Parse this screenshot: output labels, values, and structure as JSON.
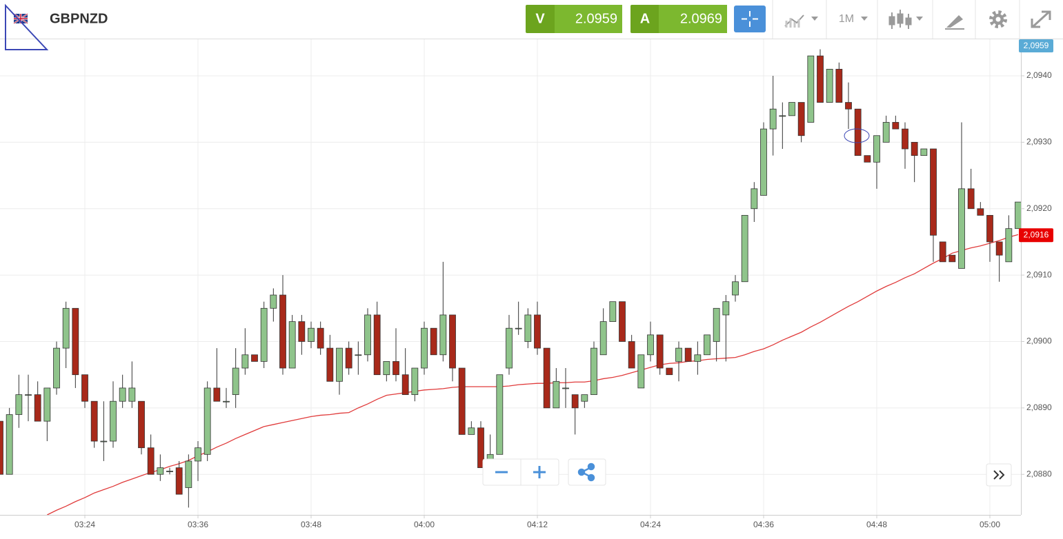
{
  "header": {
    "symbol": "GBPNZD",
    "sell_label": "V",
    "sell_price": "2.0959",
    "buy_label": "A",
    "buy_price": "2.0969",
    "timeframe": "1M"
  },
  "chart_data": {
    "type": "candlestick",
    "categories": [
      null,
      null,
      null,
      null,
      null,
      null,
      null,
      null,
      null,
      "03:24",
      null,
      null,
      null,
      null,
      null,
      null,
      null,
      null,
      null,
      null,
      null,
      "03:36",
      null,
      null,
      null,
      null,
      null,
      null,
      null,
      null,
      null,
      null,
      null,
      "03:48",
      null,
      null,
      null,
      null,
      null,
      null,
      null,
      null,
      null,
      null,
      null,
      "04:00",
      null,
      null,
      null,
      null,
      null,
      null,
      null,
      null,
      null,
      null,
      null,
      "04:12",
      null,
      null,
      null,
      null,
      null,
      null,
      null,
      null,
      null,
      null,
      null,
      "04:24",
      null,
      null,
      null,
      null,
      null,
      null,
      null,
      null,
      null,
      null,
      null,
      "04:36",
      null,
      null,
      null,
      null,
      null,
      null,
      null,
      null,
      null,
      null,
      null,
      "04:48",
      null,
      null,
      null,
      null,
      null,
      null,
      null,
      null,
      null,
      null,
      null,
      "05:00",
      null,
      null,
      null
    ],
    "open": [
      2.0888,
      2.088,
      2.0889,
      2.0892,
      2.0892,
      2.0888,
      2.0893,
      2.0899,
      2.0905,
      2.0895,
      2.0891,
      2.0885,
      2.0885,
      2.0891,
      2.0891,
      2.0891,
      2.0884,
      2.088,
      2.08805,
      2.0881,
      2.0878,
      2.0882,
      2.0883,
      2.0893,
      2.0891,
      2.0892,
      2.0896,
      2.0898,
      2.0897,
      2.0905,
      2.0907,
      2.0896,
      2.0903,
      2.09,
      2.0902,
      2.0899,
      2.0894,
      2.0899,
      2.0898,
      2.0898,
      2.0904,
      2.0895,
      2.0897,
      2.0895,
      2.0892,
      2.0896,
      2.0902,
      2.0898,
      2.0904,
      2.0896,
      2.0886,
      2.0887,
      2.0881,
      2.0883,
      2.0896,
      2.0902,
      2.09,
      2.0904,
      2.0899,
      2.089,
      2.0893,
      2.0892,
      2.0891,
      2.0892,
      2.0898,
      2.0903,
      2.0906,
      2.09,
      2.0893,
      2.0898,
      2.0901,
      2.0896,
      2.0897,
      2.0899,
      2.0897,
      2.0898,
      2.09,
      2.0904,
      2.0907,
      2.0909,
      2.092,
      2.0922,
      2.0932,
      2.0934,
      2.0934,
      2.0936,
      2.0933,
      2.0943,
      2.0936,
      2.0941,
      2.0936,
      2.0935,
      2.0928,
      2.0927,
      2.093,
      2.0933,
      2.0932,
      2.093,
      2.0928,
      2.0929,
      2.0915,
      2.0913,
      2.0911,
      2.0923,
      2.092,
      2.0919,
      2.0915,
      2.0912,
      2.0917
    ],
    "high": [
      2.0888,
      2.089,
      2.0895,
      2.0895,
      2.0894,
      2.0893,
      2.09,
      2.0906,
      2.0905,
      2.0895,
      2.0891,
      2.0891,
      2.0894,
      2.0895,
      2.0897,
      2.0891,
      2.0886,
      2.0883,
      2.0881,
      2.0882,
      2.0883,
      2.0885,
      2.0894,
      2.0899,
      2.0893,
      2.0899,
      2.0902,
      2.0898,
      2.0906,
      2.0908,
      2.091,
      2.0904,
      2.0904,
      2.0903,
      2.0903,
      2.0901,
      2.0899,
      2.09,
      2.09,
      2.0905,
      2.0906,
      2.0897,
      2.0902,
      2.0899,
      2.0896,
      2.0903,
      2.0902,
      2.0912,
      2.0904,
      2.0896,
      2.0888,
      2.0888,
      2.0886,
      2.0895,
      2.0904,
      2.0906,
      2.0905,
      2.0906,
      2.0899,
      2.0896,
      2.0896,
      2.0892,
      2.0892,
      2.09,
      2.0905,
      2.0906,
      2.0906,
      2.0901,
      2.0898,
      2.0903,
      2.0901,
      2.0896,
      2.09,
      2.0899,
      2.09,
      2.0901,
      2.0905,
      2.0907,
      2.091,
      2.0919,
      2.0924,
      2.0933,
      2.094,
      2.0936,
      2.0936,
      2.0936,
      2.0943,
      2.0944,
      2.0941,
      2.0942,
      2.0939,
      2.0935,
      2.0928,
      2.0931,
      2.0934,
      2.0934,
      2.0933,
      2.093,
      2.0929,
      2.0929,
      2.0915,
      2.0913,
      2.0933,
      2.0926,
      2.0921,
      2.0919,
      2.0915,
      2.0919,
      2.0921
    ],
    "low": [
      2.088,
      2.088,
      2.0887,
      2.0888,
      2.0888,
      2.0885,
      2.0892,
      2.0896,
      2.0893,
      2.089,
      2.0884,
      2.0882,
      2.0884,
      2.089,
      2.089,
      2.0883,
      2.088,
      2.0879,
      2.088,
      2.0877,
      2.0875,
      2.0879,
      2.0882,
      2.0891,
      2.089,
      2.089,
      2.0895,
      2.0897,
      2.0896,
      2.0903,
      2.0895,
      2.0896,
      2.0898,
      2.0899,
      2.0898,
      2.0894,
      2.0892,
      2.0895,
      2.0895,
      2.0897,
      2.0895,
      2.0894,
      2.0894,
      2.0892,
      2.0891,
      2.0895,
      2.0898,
      2.0897,
      2.0894,
      2.0886,
      2.0886,
      2.0881,
      2.088,
      2.0883,
      2.0895,
      2.0901,
      2.0899,
      2.0898,
      2.089,
      2.089,
      2.089,
      2.0886,
      2.089,
      2.0892,
      2.0898,
      2.0903,
      2.09,
      2.0896,
      2.0893,
      2.0897,
      2.0895,
      2.0895,
      2.0894,
      2.0897,
      2.0895,
      2.0898,
      2.0897,
      2.0897,
      2.0906,
      2.0909,
      2.0918,
      2.0922,
      2.0928,
      2.0929,
      2.0934,
      2.093,
      2.0933,
      2.0936,
      2.0936,
      2.0936,
      2.0932,
      2.0928,
      2.0927,
      2.0923,
      2.093,
      2.0932,
      2.0926,
      2.0924,
      2.0928,
      2.0912,
      2.0912,
      2.0912,
      2.0911,
      2.092,
      2.0919,
      2.0912,
      2.0909,
      2.0912,
      2.0917
    ],
    "close": [
      2.088,
      2.0889,
      2.0892,
      2.0892,
      2.0888,
      2.0893,
      2.0899,
      2.0905,
      2.0895,
      2.0891,
      2.0885,
      2.0885,
      2.0891,
      2.0893,
      2.0893,
      2.0884,
      2.088,
      2.0881,
      2.08805,
      2.0877,
      2.0882,
      2.0884,
      2.0893,
      2.0891,
      2.0891,
      2.0896,
      2.0898,
      2.0897,
      2.0905,
      2.0907,
      2.0896,
      2.0903,
      2.09,
      2.0902,
      2.0899,
      2.0894,
      2.0899,
      2.0896,
      2.0898,
      2.0904,
      2.0895,
      2.0897,
      2.0895,
      2.0892,
      2.0896,
      2.0902,
      2.0898,
      2.0904,
      2.0896,
      2.0886,
      2.0887,
      2.0881,
      2.0883,
      2.0895,
      2.0902,
      2.0902,
      2.0904,
      2.0899,
      2.089,
      2.0894,
      2.0893,
      2.089,
      2.0892,
      2.0899,
      2.0903,
      2.0906,
      2.09,
      2.0896,
      2.0898,
      2.0901,
      2.0896,
      2.0895,
      2.0899,
      2.0897,
      2.0898,
      2.0901,
      2.0905,
      2.0906,
      2.0909,
      2.0919,
      2.0923,
      2.0932,
      2.0935,
      2.0934,
      2.0936,
      2.0931,
      2.0943,
      2.0936,
      2.0941,
      2.0936,
      2.0935,
      2.0928,
      2.0927,
      2.0931,
      2.0933,
      2.0932,
      2.0929,
      2.0928,
      2.0929,
      2.0916,
      2.0912,
      2.0912,
      2.0923,
      2.092,
      2.0919,
      2.0915,
      2.0913,
      2.0917,
      2.0921
    ],
    "up_color": "#8fc48b",
    "down_color": "#a8291a",
    "wick_color": "#333333",
    "overlay": {
      "color": "#e03a3a",
      "values": [
        null,
        null,
        null,
        null,
        null,
        2.08739,
        2.08746,
        2.08752,
        2.08759,
        2.08765,
        2.08772,
        2.08777,
        2.08782,
        2.08788,
        2.08793,
        2.08798,
        2.08803,
        2.08807,
        2.08812,
        2.08816,
        2.08821,
        2.08828,
        2.08834,
        2.08841,
        2.08847,
        2.08854,
        2.0886,
        2.08866,
        2.08872,
        2.08875,
        2.08878,
        2.08881,
        2.08884,
        2.08887,
        2.08889,
        2.0889,
        2.08892,
        2.08893,
        2.089,
        2.08906,
        2.08913,
        2.08919,
        2.08921,
        2.08923,
        2.08925,
        2.08927,
        2.08928,
        2.08929,
        2.08931,
        2.08932,
        2.08932,
        2.08932,
        2.08932,
        2.08932,
        2.08933,
        2.08935,
        2.08936,
        2.08937,
        2.08937,
        2.08938,
        2.08938,
        2.08939,
        2.08939,
        2.08941,
        2.08944,
        2.08946,
        2.08949,
        2.08953,
        2.08957,
        2.08961,
        2.08965,
        2.08967,
        2.08968,
        2.0897,
        2.08971,
        2.08973,
        2.08974,
        2.08975,
        2.08976,
        2.0898,
        2.08985,
        2.08989,
        2.08995,
        2.09002,
        2.09008,
        2.09014,
        2.09022,
        2.09029,
        2.09037,
        2.09045,
        2.09053,
        2.0906,
        2.09068,
        2.09076,
        2.09083,
        2.09089,
        2.09096,
        2.09102,
        2.0911,
        2.09118,
        2.09125,
        2.09133,
        2.09137,
        2.09141,
        2.09144,
        2.09148,
        2.09152,
        2.09157,
        2.09161
      ]
    },
    "ylim": [
      2.08739,
      2.09455
    ],
    "yticks": [
      {
        "value": 2.088,
        "label": "2,0880"
      },
      {
        "value": 2.089,
        "label": "2,0890"
      },
      {
        "value": 2.09,
        "label": "2,0900"
      },
      {
        "value": 2.091,
        "label": "2,0910"
      },
      {
        "value": 2.092,
        "label": "2,0920"
      },
      {
        "value": 2.093,
        "label": "2,0930"
      },
      {
        "value": 2.094,
        "label": "2,0940"
      }
    ],
    "grid": true,
    "last_price_tag": {
      "value": 2.0916,
      "label": "2,0916",
      "color": "#e80000"
    },
    "quote_tag": {
      "label": "2,0959",
      "color": "#5aabd6"
    }
  }
}
